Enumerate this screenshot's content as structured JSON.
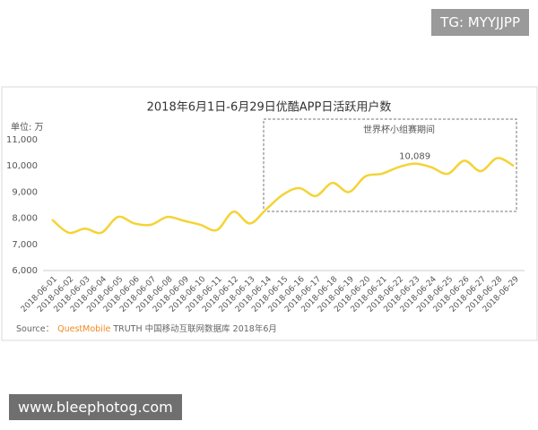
{
  "overlays": {
    "top_tag": "TG: MYYJJPP",
    "bottom_tag": "www.bleephotog.com"
  },
  "chart_data": {
    "type": "line",
    "title": "2018年6月1日-6月29日优酷APP日活跃用户数",
    "unit_label": "单位: 万",
    "highlight_label": "世界杯小组赛期间",
    "source": {
      "prefix": "Source：",
      "brand": "QuestMobile",
      "text": "TRUTH 中国移动互联网数据库 2018年6月"
    },
    "categories": [
      "2018-06-01",
      "2018-06-02",
      "2018-06-03",
      "2018-06-04",
      "2018-06-05",
      "2018-06-06",
      "2018-06-07",
      "2018-06-08",
      "2018-06-09",
      "2018-06-10",
      "2018-06-11",
      "2018-06-12",
      "2018-06-13",
      "2018-06-14",
      "2018-06-15",
      "2018-06-16",
      "2018-06-17",
      "2018-06-18",
      "2018-06-19",
      "2018-06-20",
      "2018-06-21",
      "2018-06-22",
      "2018-06-23",
      "2018-06-24",
      "2018-06-25",
      "2018-06-26",
      "2018-06-27",
      "2018-06-28",
      "2018-06-29"
    ],
    "values": [
      7950,
      7450,
      7600,
      7450,
      8050,
      7800,
      7750,
      8050,
      7900,
      7750,
      7550,
      8250,
      7800,
      8350,
      8900,
      9150,
      8850,
      9350,
      9000,
      9600,
      9700,
      9950,
      10089,
      9950,
      9700,
      10200,
      9800,
      10300,
      10000
    ],
    "value_labels": [
      null,
      null,
      null,
      null,
      null,
      null,
      null,
      null,
      null,
      null,
      null,
      null,
      null,
      null,
      null,
      null,
      null,
      null,
      null,
      null,
      null,
      null,
      "10,089",
      null,
      null,
      null,
      null,
      null,
      null
    ],
    "color": "#f5d335",
    "ylim": [
      6000,
      11000
    ],
    "yticks": [
      {
        "value": 6000,
        "label": "6,000"
      },
      {
        "value": 7000,
        "label": "7,000"
      },
      {
        "value": 8000,
        "label": "8,000"
      },
      {
        "value": 9000,
        "label": "9,000"
      },
      {
        "value": 10000,
        "label": "10,000"
      },
      {
        "value": 11000,
        "label": "11,000"
      }
    ],
    "grid": false
  }
}
